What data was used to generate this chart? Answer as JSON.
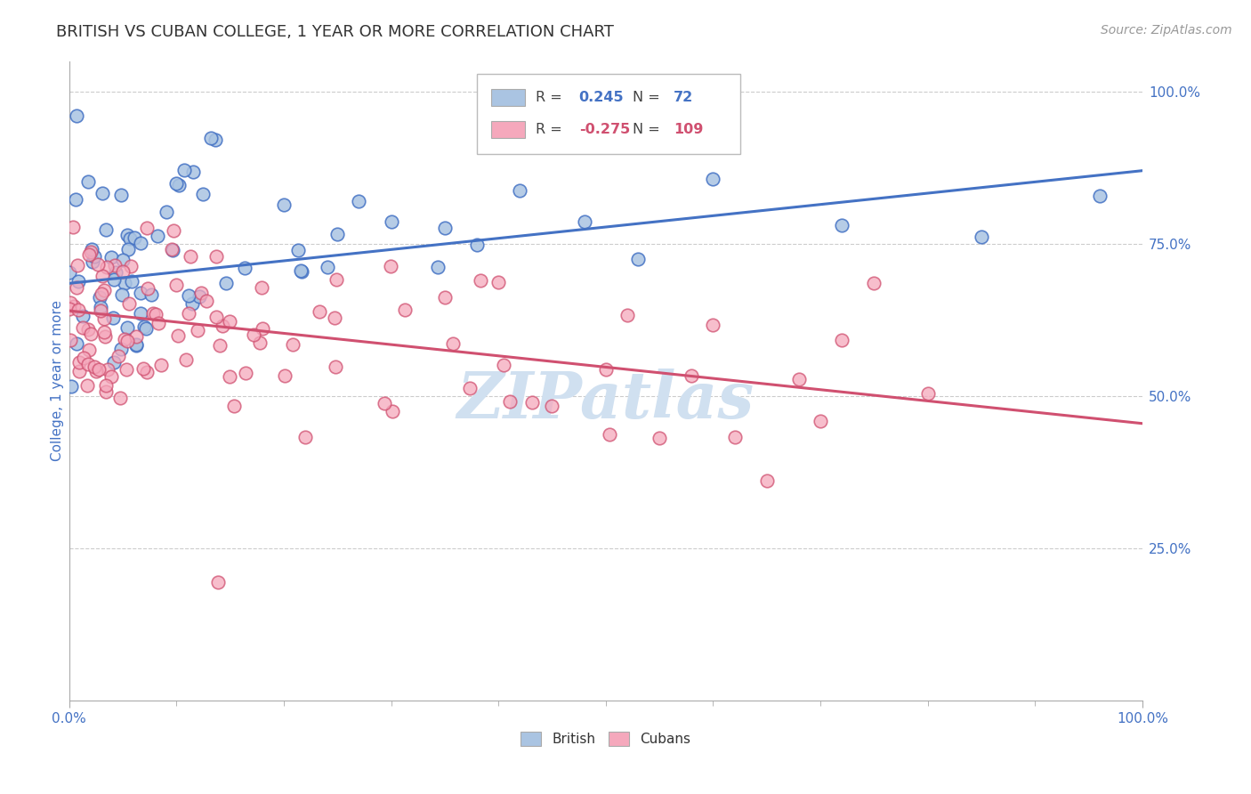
{
  "title": "BRITISH VS CUBAN COLLEGE, 1 YEAR OR MORE CORRELATION CHART",
  "source_text": "Source: ZipAtlas.com",
  "ylabel": "College, 1 year or more",
  "xlim": [
    0.0,
    1.0
  ],
  "ylim": [
    0.0,
    1.05
  ],
  "x_tick_labels": [
    "0.0%",
    "100.0%"
  ],
  "y_tick_labels": [
    "25.0%",
    "50.0%",
    "75.0%",
    "100.0%"
  ],
  "y_tick_values": [
    0.25,
    0.5,
    0.75,
    1.0
  ],
  "british_R": 0.245,
  "british_N": 72,
  "cuban_R": -0.275,
  "cuban_N": 109,
  "british_color": "#aac4e2",
  "cuban_color": "#f5a8bc",
  "british_line_color": "#4472c4",
  "cuban_line_color": "#d05070",
  "background_color": "#ffffff",
  "grid_color": "#cccccc",
  "title_color": "#333333",
  "axis_label_color": "#4472c4",
  "watermark_text": "ZIPatlas",
  "watermark_color": "#d0e0f0",
  "title_fontsize": 13,
  "label_fontsize": 11,
  "tick_fontsize": 11,
  "source_fontsize": 10,
  "british_seed": 7,
  "cuban_seed": 13,
  "brit_line_y0": 0.685,
  "brit_line_y1": 0.87,
  "cuban_line_y0": 0.64,
  "cuban_line_y1": 0.455
}
